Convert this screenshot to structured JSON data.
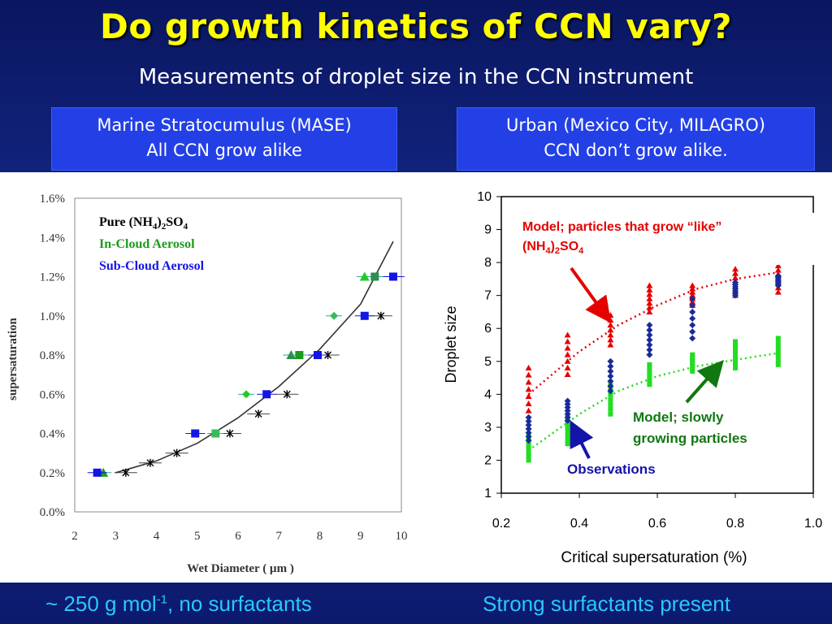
{
  "slide": {
    "title": "Do growth kinetics of CCN vary?",
    "subtitle": "Measurements of droplet size in the CCN instrument",
    "left_header": [
      "Marine Stratocumulus (MASE)",
      "All CCN grow alike"
    ],
    "right_header": [
      "Urban (Mexico City, MILAGRO)",
      "CCN don’t grow alike."
    ],
    "left_footer": {
      "pre": "~ 250 g mol",
      "sup": "-1",
      "post": ", no surfactants"
    },
    "right_footer": "Strong surfactants present"
  },
  "colors": {
    "title": "#ffff00",
    "footer": "#29c8ff",
    "header_bg": "#2340e6"
  },
  "chart_data": [
    {
      "type": "scatter",
      "xlabel": "Wet Diameter ( µm )",
      "ylabel": "supersaturation",
      "xlim": [
        2,
        10
      ],
      "ylim": [
        0,
        0.016
      ],
      "x_ticks": [
        "2",
        "3",
        "4",
        "5",
        "6",
        "7",
        "8",
        "9",
        "10"
      ],
      "y_ticks": [
        "0.0%",
        "0.2%",
        "0.4%",
        "0.6%",
        "0.8%",
        "1.0%",
        "1.2%",
        "1.4%",
        "1.6%"
      ],
      "legend": [
        {
          "name": "Pure (NH4)2SO4",
          "color": "#000000"
        },
        {
          "name": "In-Cloud Aerosol",
          "color": "#1a9c1a"
        },
        {
          "name": "Sub-Cloud Aerosol",
          "color": "#1414e6"
        }
      ],
      "series": [
        {
          "name": "Pure (NH4)2SO4",
          "points": [
            [
              3.25,
              0.002
            ],
            [
              3.85,
              0.0025
            ],
            [
              4.5,
              0.003
            ],
            [
              5.8,
              0.004
            ],
            [
              6.5,
              0.005
            ],
            [
              7.2,
              0.006
            ],
            [
              8.2,
              0.008
            ],
            [
              9.5,
              0.01
            ],
            [
              9.8,
              0.012
            ]
          ]
        },
        {
          "name": "In-Cloud Aerosol",
          "points": [
            [
              2.7,
              0.002
            ],
            [
              5.45,
              0.004
            ],
            [
              6.2,
              0.006
            ],
            [
              7.3,
              0.008
            ],
            [
              7.5,
              0.008
            ],
            [
              8.35,
              0.01
            ],
            [
              9.1,
              0.012
            ],
            [
              9.35,
              0.012
            ]
          ]
        },
        {
          "name": "Sub-Cloud Aerosol",
          "points": [
            [
              2.55,
              0.002
            ],
            [
              4.95,
              0.004
            ],
            [
              6.7,
              0.006
            ],
            [
              7.95,
              0.008
            ],
            [
              9.1,
              0.01
            ],
            [
              9.8,
              0.012
            ]
          ]
        }
      ],
      "fit_curve": [
        [
          3.0,
          0.002
        ],
        [
          4.0,
          0.0026
        ],
        [
          5.0,
          0.0035
        ],
        [
          6.0,
          0.0048
        ],
        [
          7.0,
          0.0064
        ],
        [
          8.0,
          0.0083
        ],
        [
          9.0,
          0.0106
        ],
        [
          9.8,
          0.0138
        ]
      ]
    },
    {
      "type": "scatter",
      "xlabel": "Critical supersaturation (%)",
      "ylabel": "Droplet size",
      "xlim": [
        0.2,
        1.0
      ],
      "ylim": [
        1,
        10
      ],
      "x_ticks": [
        "0.2",
        "0.4",
        "0.6",
        "0.8",
        "1.0"
      ],
      "y_ticks": [
        "1",
        "2",
        "3",
        "4",
        "5",
        "6",
        "7",
        "8",
        "9",
        "10"
      ],
      "annotations": {
        "red_line1": "Model; particles that grow “like”",
        "red_line2": "(NH4)2SO4",
        "green_line1": "Model; slowly",
        "green_line2": "growing particles",
        "blue": "Observations"
      },
      "series": [
        {
          "name": "Model; particles that grow like (NH4)2SO4",
          "color": "#e60000",
          "x": [
            0.27,
            0.37,
            0.48,
            0.58,
            0.69,
            0.8,
            0.91
          ],
          "y_ranges": [
            [
              3.5,
              4.8
            ],
            [
              4.6,
              5.8
            ],
            [
              5.5,
              6.4
            ],
            [
              6.5,
              7.3
            ],
            [
              6.7,
              7.3
            ],
            [
              7.0,
              7.8
            ],
            [
              7.1,
              7.9
            ]
          ]
        },
        {
          "name": "Model; slowly growing particles",
          "color": "#22dd22",
          "x": [
            0.27,
            0.37,
            0.48,
            0.58,
            0.69,
            0.8,
            0.91
          ],
          "y_ranges": [
            [
              2.0,
              2.8
            ],
            [
              2.5,
              3.3
            ],
            [
              3.4,
              4.3
            ],
            [
              4.3,
              4.9
            ],
            [
              4.7,
              5.2
            ],
            [
              4.8,
              5.6
            ],
            [
              4.9,
              5.7
            ]
          ]
        },
        {
          "name": "Observations",
          "color": "#1a2a99",
          "x": [
            0.27,
            0.37,
            0.48,
            0.58,
            0.69,
            0.8,
            0.91
          ],
          "y_ranges": [
            [
              2.6,
              3.3
            ],
            [
              3.2,
              3.8
            ],
            [
              4.1,
              5.0
            ],
            [
              5.2,
              6.1
            ],
            [
              5.7,
              6.9
            ],
            [
              7.0,
              7.4
            ],
            [
              7.3,
              7.6
            ]
          ]
        }
      ],
      "red_fit": [
        [
          0.27,
          4.0
        ],
        [
          0.4,
          5.3
        ],
        [
          0.5,
          6.1
        ],
        [
          0.6,
          6.7
        ],
        [
          0.7,
          7.2
        ],
        [
          0.8,
          7.5
        ],
        [
          0.91,
          7.7
        ]
      ],
      "green_fit": [
        [
          0.27,
          2.3
        ],
        [
          0.4,
          3.4
        ],
        [
          0.5,
          4.1
        ],
        [
          0.6,
          4.55
        ],
        [
          0.7,
          4.85
        ],
        [
          0.8,
          5.05
        ],
        [
          0.91,
          5.25
        ]
      ]
    }
  ]
}
